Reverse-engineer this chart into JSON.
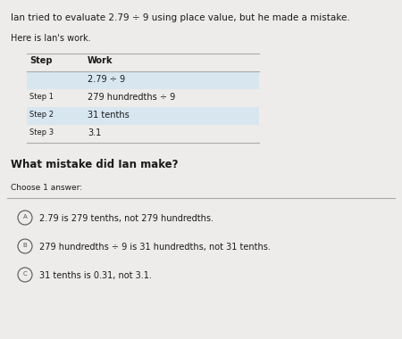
{
  "title_line1": "Ian tried to evaluate 2.79 ÷ 9 using place value, but he made a mistake.",
  "subtitle": "Here is Ian's work.",
  "table_header_step": "Step",
  "table_header_work": "Work",
  "table_row0_work": "2.79 ÷ 9",
  "table_row1_step": "Step 1",
  "table_row1_work": "279 hundredths ÷ 9",
  "table_row2_step": "Step 2",
  "table_row2_work": "31 tenths",
  "table_row3_step": "Step 3",
  "table_row3_work": "3.1",
  "question": "What mistake did Ian make?",
  "choose_label": "Choose 1 answer:",
  "option_a_label": "A",
  "option_a_text": "2.79 is 279 tenths, not 279 hundredths.",
  "option_b_label": "B",
  "option_b_text": "279 hundredths ÷ 9 is 31 hundredths, not 31 tenths.",
  "option_c_label": "C",
  "option_c_text": "31 tenths is 0.31, not 3.1.",
  "bg_color": "#edecea",
  "table_stripe_color": "#d8e6f0",
  "text_color": "#1a1a1a",
  "line_color": "#aaaaaa",
  "circle_color": "#555555",
  "font_size_title": 7.5,
  "font_size_body": 7.0,
  "font_size_step": 6.0,
  "font_size_question": 8.5,
  "font_size_choose": 6.5,
  "font_size_option": 7.0,
  "font_size_circle": 5.0
}
